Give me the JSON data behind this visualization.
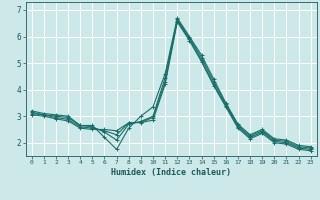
{
  "xlabel": "Humidex (Indice chaleur)",
  "ylabel": "",
  "bg_color": "#cce8e8",
  "grid_color": "#ffffff",
  "line_color": "#1a6e6a",
  "xlim": [
    -0.5,
    23.5
  ],
  "ylim": [
    1.5,
    7.3
  ],
  "xticks": [
    0,
    1,
    2,
    3,
    4,
    5,
    6,
    7,
    8,
    9,
    10,
    11,
    12,
    13,
    14,
    15,
    16,
    17,
    18,
    19,
    20,
    21,
    22,
    23
  ],
  "yticks": [
    2,
    3,
    4,
    5,
    6,
    7
  ],
  "series": [
    [
      3.2,
      3.1,
      3.05,
      3.0,
      2.65,
      2.65,
      2.2,
      1.75,
      2.55,
      3.0,
      3.35,
      4.6,
      6.7,
      6.0,
      5.3,
      4.4,
      3.5,
      2.7,
      2.3,
      2.5,
      2.15,
      2.1,
      1.9,
      1.85
    ],
    [
      3.15,
      3.05,
      3.0,
      2.95,
      2.65,
      2.6,
      2.4,
      2.1,
      2.7,
      2.8,
      3.0,
      4.45,
      6.65,
      5.95,
      5.2,
      4.3,
      3.45,
      2.65,
      2.25,
      2.45,
      2.1,
      2.05,
      1.85,
      1.8
    ],
    [
      3.1,
      3.05,
      2.95,
      2.88,
      2.6,
      2.55,
      2.45,
      2.3,
      2.75,
      2.77,
      2.95,
      4.3,
      6.6,
      5.9,
      5.1,
      4.2,
      3.4,
      2.6,
      2.2,
      2.4,
      2.05,
      2.0,
      1.8,
      1.75
    ],
    [
      3.05,
      3.0,
      2.9,
      2.82,
      2.55,
      2.5,
      2.5,
      2.45,
      2.75,
      2.76,
      2.85,
      4.2,
      6.55,
      5.85,
      5.05,
      4.15,
      3.35,
      2.55,
      2.15,
      2.35,
      2.0,
      1.95,
      1.75,
      1.7
    ]
  ]
}
